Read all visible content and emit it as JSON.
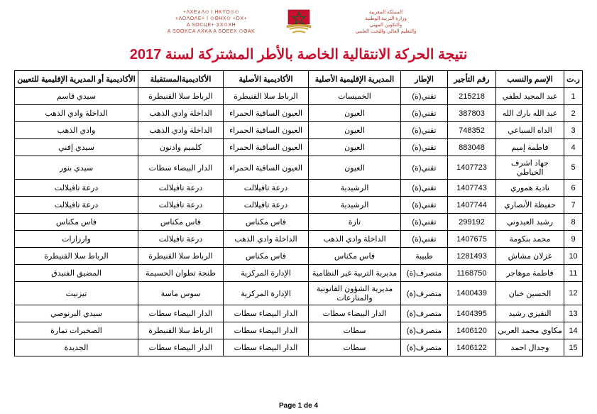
{
  "header": {
    "right_lines": [
      "المملكة المغربية",
      "وزارة التربية الوطنية",
      "والتكوين المهني",
      "والتعليم العالي والبحث العلمي"
    ],
    "left_lines": [
      "+ΛXE∧Λ⊙ I HKYO⊙⊙",
      "+ΛOΛOΛE+ I ⊙ΘHX⊙ +OX+",
      "A SOCЦE+ XX⊙XH",
      "A SOOKCA ΛXKA A SOEEX ⊙ΘAK"
    ]
  },
  "title": "نتيجة الحركة الانتقالية الخاصة بالأطر المشتركة لسنة 2017",
  "columns": [
    "ر.ت",
    "الإسم والنسب",
    "رقم التأجير",
    "الإطار",
    "المديرية الإقليمية الأصلية",
    "الأكاديمية الأصلية",
    "الأكاديميةالمستقبلة",
    "الأكاديمية أو المديرية الإقليمية للتعيين"
  ],
  "rows": [
    {
      "n": "1",
      "name": "عبد المجيد لطفي",
      "num": "215218",
      "cadre": "تقني(ة)",
      "prov": "الخميسات",
      "acad": "الرباط سلا القنيطرة",
      "acad2": "الرباط سلا القنيطرة",
      "dest": "سيدي قاسم"
    },
    {
      "n": "2",
      "name": "عبد الله بارك الله",
      "num": "387803",
      "cadre": "تقني(ة)",
      "prov": "العيون",
      "acad": "العيون الساقية الحمراء",
      "acad2": "الداخلة وادي الذهب",
      "dest": "الداخلة وادي الذهب"
    },
    {
      "n": "3",
      "name": "الداه السباعي",
      "num": "748352",
      "cadre": "تقني(ة)",
      "prov": "العيون",
      "acad": "العيون الساقية الحمراء",
      "acad2": "الداخلة وادي الذهب",
      "dest": "وادي الذهب"
    },
    {
      "n": "4",
      "name": "فاطمة إميم",
      "num": "883048",
      "cadre": "تقني(ة)",
      "prov": "العيون",
      "acad": "العيون الساقية الحمراء",
      "acad2": "كلميم وادنون",
      "dest": "سيدي إفني"
    },
    {
      "n": "5",
      "name": "جهاد اشرف الخياطي",
      "num": "1407723",
      "cadre": "تقني(ة)",
      "prov": "العيون",
      "acad": "العيون الساقية الحمراء",
      "acad2": "الدار البيضاء سطات",
      "dest": "سيدي بنور"
    },
    {
      "n": "6",
      "name": "نادية هموري",
      "num": "1407743",
      "cadre": "تقني(ة)",
      "prov": "الرشيدية",
      "acad": "درعة تافيلالت",
      "acad2": "درعة تافيلالت",
      "dest": "درعة تافيلالت"
    },
    {
      "n": "7",
      "name": "حفيظة الأنصاري",
      "num": "1407744",
      "cadre": "تقني(ة)",
      "prov": "الرشيدية",
      "acad": "درعة تافيلالت",
      "acad2": "درعة تافيلالت",
      "dest": "درعة تافيلالت"
    },
    {
      "n": "8",
      "name": "رشيد العيدوني",
      "num": "299192",
      "cadre": "تقني(ة)",
      "prov": "تازة",
      "acad": "فاس مكناس",
      "acad2": "فاس مكناس",
      "dest": "فاس مكناس"
    },
    {
      "n": "9",
      "name": "محمد بنكومة",
      "num": "1407675",
      "cadre": "تقني(ة)",
      "prov": "الداخلة وادي الذهب",
      "acad": "الداخلة وادي الذهب",
      "acad2": "درعة تافيلالت",
      "dest": "وارزازات"
    },
    {
      "n": "10",
      "name": "غزلان مشاش",
      "num": "1281493",
      "cadre": "طبيبة",
      "prov": "فاس مكناس",
      "acad": "فاس مكناس",
      "acad2": "الرباط سلا القنيطرة",
      "dest": "الرباط سلا القنيطرة"
    },
    {
      "n": "11",
      "name": "فاطمة موهاجر",
      "num": "1168750",
      "cadre": "متصرف(ة)",
      "prov": "مديرية التربية غير النظامية",
      "acad": "الإدارة المركزية",
      "acad2": "طنجة تطوان الحسيمة",
      "dest": "المضيق الفنيدق"
    },
    {
      "n": "12",
      "name": "الحسين خبان",
      "num": "1400439",
      "cadre": "متصرف(ة)",
      "prov": "مديرية الشؤون القانونية والمنازعات",
      "acad": "الإدارة المركزية",
      "acad2": "سوس ماسة",
      "dest": "تيزنيت"
    },
    {
      "n": "13",
      "name": "النقيزي رشيد",
      "num": "1404395",
      "cadre": "متصرف(ة)",
      "prov": "الدار البيضاء سطات",
      "acad": "الدار البيضاء سطات",
      "acad2": "الدار البيضاء سطات",
      "dest": "سيدي البرنوصي"
    },
    {
      "n": "14",
      "name": "مكاوي محمد العربي",
      "num": "1406120",
      "cadre": "متصرف(ة)",
      "prov": "سطات",
      "acad": "الدار البيضاء سطات",
      "acad2": "الرباط سلا القنيطرة",
      "dest": "الصخيرات تمارة"
    },
    {
      "n": "15",
      "name": "وجدال احمد",
      "num": "1406122",
      "cadre": "متصرف(ة)",
      "prov": "سطات",
      "acad": "الدار البيضاء سطات",
      "acad2": "الدار البيضاء سطات",
      "dest": "الجديدة"
    }
  ],
  "footer": "Page 1 de 4",
  "colors": {
    "title": "#c8102e",
    "header_text": "#b04030",
    "border": "#000000",
    "emblem_red": "#c8102e",
    "emblem_green": "#006233",
    "emblem_gold": "#d4a93a"
  }
}
